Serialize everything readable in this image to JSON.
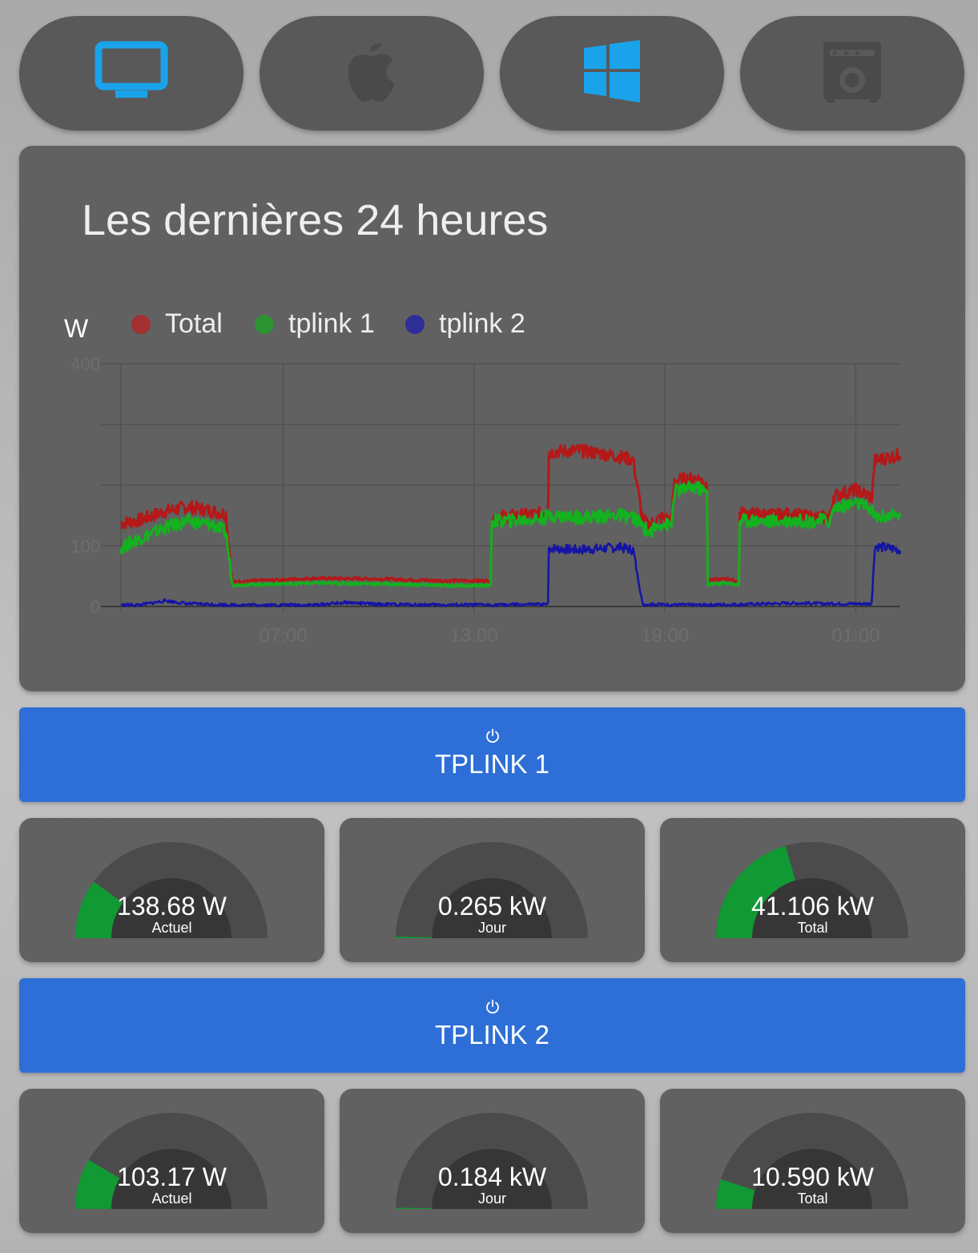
{
  "top_buttons": [
    {
      "name": "monitor-icon",
      "color": "#1aa3ea"
    },
    {
      "name": "apple-icon",
      "color": "#4a4a4a"
    },
    {
      "name": "windows-icon",
      "color": "#1aa3ea"
    },
    {
      "name": "amplifier-icon",
      "color": "#4a4a4a"
    }
  ],
  "chart_card": {
    "title": "Les dernières 24 heures",
    "legend_unit": "W",
    "legend": [
      {
        "label": "Total",
        "color": "#c0282a"
      },
      {
        "label": "tplink 1",
        "color": "#22a02b"
      },
      {
        "label": "tplink 2",
        "color": "#2a2a9e"
      }
    ]
  },
  "chart_data": {
    "type": "line",
    "ylabel": "W",
    "ylim": [
      0,
      400
    ],
    "y_ticks": [
      "400",
      "100",
      "0"
    ],
    "x_ticks": [
      "07:00",
      "13:00",
      "19:00",
      "01:00"
    ],
    "x_range_hours": [
      1.9,
      26.4
    ],
    "grid": true,
    "legend_position": "top-left",
    "series": [
      {
        "name": "Total",
        "color": "#b51818",
        "points": [
          [
            1.9,
            135
          ],
          [
            2.5,
            140
          ],
          [
            3.3,
            155
          ],
          [
            4.0,
            162
          ],
          [
            4.8,
            155
          ],
          [
            5.2,
            150
          ],
          [
            5.4,
            40
          ],
          [
            8.0,
            46
          ],
          [
            10.0,
            45
          ],
          [
            12.0,
            42
          ],
          [
            13.5,
            42
          ],
          [
            13.55,
            145
          ],
          [
            14.5,
            148
          ],
          [
            15.0,
            150
          ],
          [
            15.3,
            155
          ],
          [
            15.35,
            252
          ],
          [
            16.2,
            255
          ],
          [
            17.0,
            250
          ],
          [
            17.5,
            245
          ],
          [
            18.0,
            240
          ],
          [
            18.3,
            140
          ],
          [
            18.5,
            132
          ],
          [
            18.9,
            145
          ],
          [
            19.2,
            140
          ],
          [
            19.3,
            205
          ],
          [
            20.0,
            210
          ],
          [
            20.3,
            200
          ],
          [
            20.35,
            43
          ],
          [
            21.0,
            45
          ],
          [
            21.3,
            40
          ],
          [
            21.35,
            152
          ],
          [
            22.5,
            148
          ],
          [
            23.0,
            150
          ],
          [
            23.5,
            145
          ],
          [
            24.0,
            145
          ],
          [
            24.2,
            148
          ],
          [
            24.3,
            180
          ],
          [
            25.0,
            190
          ],
          [
            25.5,
            178
          ],
          [
            25.6,
            238
          ],
          [
            26.4,
            248
          ]
        ]
      },
      {
        "name": "tplink 1",
        "color": "#13b21f",
        "points": [
          [
            1.9,
            95
          ],
          [
            2.5,
            110
          ],
          [
            3.3,
            128
          ],
          [
            4.0,
            138
          ],
          [
            4.8,
            132
          ],
          [
            5.2,
            120
          ],
          [
            5.4,
            35
          ],
          [
            8.0,
            38
          ],
          [
            10.0,
            37
          ],
          [
            12.0,
            34
          ],
          [
            13.5,
            34
          ],
          [
            13.55,
            138
          ],
          [
            14.5,
            140
          ],
          [
            15.0,
            142
          ],
          [
            15.3,
            145
          ],
          [
            15.35,
            148
          ],
          [
            16.2,
            145
          ],
          [
            17.0,
            146
          ],
          [
            17.5,
            148
          ],
          [
            18.0,
            145
          ],
          [
            18.3,
            130
          ],
          [
            18.5,
            120
          ],
          [
            18.9,
            135
          ],
          [
            19.2,
            130
          ],
          [
            19.3,
            188
          ],
          [
            20.0,
            195
          ],
          [
            20.3,
            185
          ],
          [
            20.35,
            36
          ],
          [
            21.0,
            38
          ],
          [
            21.3,
            35
          ],
          [
            21.35,
            140
          ],
          [
            22.5,
            138
          ],
          [
            23.0,
            140
          ],
          [
            23.5,
            138
          ],
          [
            24.0,
            140
          ],
          [
            24.2,
            138
          ],
          [
            24.3,
            160
          ],
          [
            25.0,
            168
          ],
          [
            25.5,
            158
          ],
          [
            25.6,
            145
          ],
          [
            26.4,
            148
          ]
        ]
      },
      {
        "name": "tplink 2",
        "color": "#1414a6",
        "points": [
          [
            1.9,
            2
          ],
          [
            2.5,
            2
          ],
          [
            3.3,
            9
          ],
          [
            4.0,
            4
          ],
          [
            5.4,
            2
          ],
          [
            8.0,
            2
          ],
          [
            9.0,
            6
          ],
          [
            10.0,
            3
          ],
          [
            12.0,
            2
          ],
          [
            13.5,
            2
          ],
          [
            15.3,
            3
          ],
          [
            15.35,
            95
          ],
          [
            16.2,
            92
          ],
          [
            17.0,
            94
          ],
          [
            17.5,
            96
          ],
          [
            18.0,
            92
          ],
          [
            18.3,
            3
          ],
          [
            20.0,
            2
          ],
          [
            21.35,
            3
          ],
          [
            23.0,
            5
          ],
          [
            24.0,
            4
          ],
          [
            25.5,
            4
          ],
          [
            25.6,
            98
          ],
          [
            26.4,
            92
          ]
        ]
      }
    ]
  },
  "tplink1": {
    "label": "TPLINK 1",
    "gauges": [
      {
        "value": "138.68 W",
        "sub": "Actuel",
        "fraction": 0.2
      },
      {
        "value": "0.265 kW",
        "sub": "Jour",
        "fraction": 0.005
      },
      {
        "value": "41.106 kW",
        "sub": "Total",
        "fraction": 0.41
      }
    ]
  },
  "tplink2": {
    "label": "TPLINK 2",
    "gauges": [
      {
        "value": "103.17 W",
        "sub": "Actuel",
        "fraction": 0.17
      },
      {
        "value": "0.184 kW",
        "sub": "Jour",
        "fraction": 0.004
      },
      {
        "value": "10.590 kW",
        "sub": "Total",
        "fraction": 0.1
      }
    ]
  },
  "colors": {
    "gauge_green": "#119933",
    "gauge_track": "#4b4b4b",
    "button_blue": "#2d6fd6"
  }
}
